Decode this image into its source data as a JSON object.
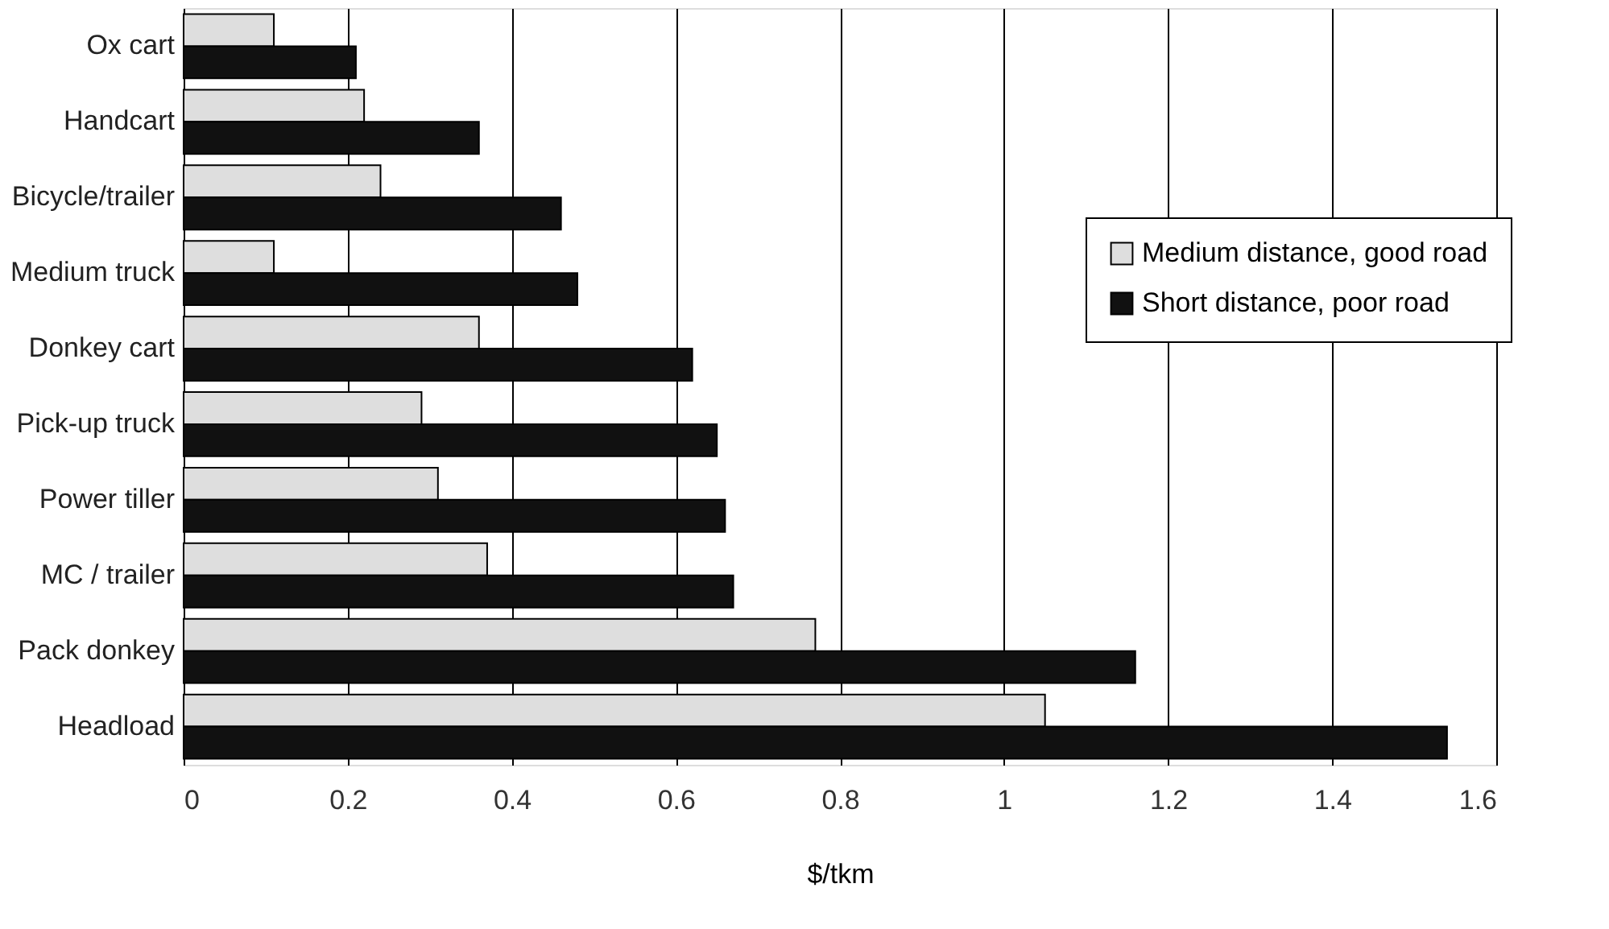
{
  "chart_data": {
    "type": "bar",
    "orientation": "horizontal",
    "xlabel": "$/tkm",
    "categories": [
      "Ox cart",
      "Handcart",
      "Bicycle/trailer",
      "Medium truck",
      "Donkey cart",
      "Pick-up truck",
      "Power tiller",
      "MC / trailer",
      "Pack donkey",
      "Headload"
    ],
    "series": [
      {
        "name": "Medium distance, good road",
        "color": "#dedede",
        "values": [
          0.11,
          0.22,
          0.24,
          0.11,
          0.36,
          0.29,
          0.31,
          0.37,
          0.77,
          1.05
        ]
      },
      {
        "name": "Short distance, poor road",
        "color": "#111111",
        "values": [
          0.21,
          0.36,
          0.46,
          0.48,
          0.62,
          0.65,
          0.66,
          0.67,
          1.16,
          1.54
        ]
      }
    ],
    "xlim": [
      0,
      1.6
    ],
    "xticks": [
      0,
      0.2,
      0.4,
      0.6,
      0.8,
      1,
      1.2,
      1.4,
      1.6
    ],
    "grid": "x",
    "legend": "right"
  }
}
